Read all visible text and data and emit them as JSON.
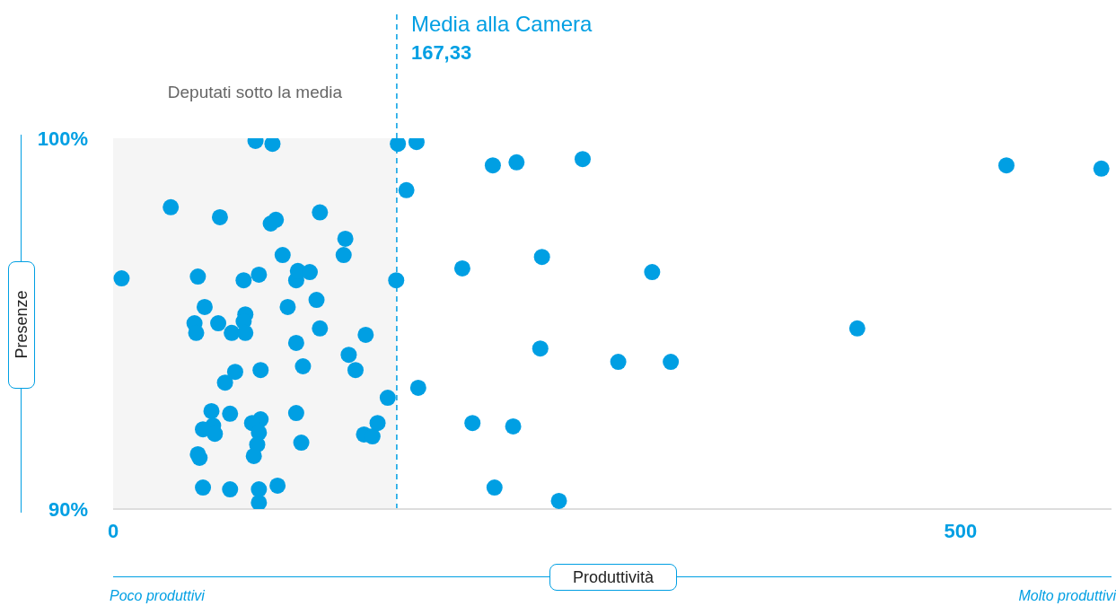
{
  "chart_data": {
    "type": "scatter",
    "xlabel": "Produttività",
    "ylabel": "Presenze",
    "x": [
      84,
      94,
      168,
      179,
      224,
      238,
      277,
      527,
      583,
      173,
      34,
      63,
      93,
      96,
      122,
      137,
      136,
      100,
      206,
      253,
      318,
      5,
      50,
      77,
      86,
      108,
      109,
      116,
      167,
      120,
      54,
      103,
      48,
      49,
      62,
      78,
      77,
      70,
      78,
      122,
      149,
      108,
      139,
      112,
      143,
      72,
      87,
      66,
      439,
      252,
      298,
      329,
      162,
      180,
      58,
      69,
      87,
      108,
      59,
      53,
      60,
      82,
      86,
      85,
      111,
      156,
      148,
      153,
      212,
      236,
      50,
      51,
      83,
      53,
      69,
      86,
      97,
      86,
      225,
      263
    ],
    "values": [
      99.93,
      99.85,
      99.85,
      99.9,
      99.27,
      99.35,
      99.44,
      99.27,
      99.18,
      98.6,
      98.14,
      97.87,
      97.7,
      97.8,
      98.0,
      97.29,
      96.85,
      96.85,
      96.49,
      96.8,
      96.39,
      96.22,
      96.27,
      96.17,
      96.32,
      96.17,
      96.42,
      96.39,
      96.17,
      95.64,
      95.45,
      95.45,
      95.01,
      94.75,
      95.01,
      95.25,
      95.06,
      94.75,
      94.75,
      94.87,
      94.7,
      94.48,
      94.16,
      93.85,
      93.75,
      93.7,
      93.75,
      93.41,
      94.87,
      94.33,
      93.97,
      93.97,
      93.0,
      93.27,
      92.64,
      92.57,
      92.42,
      92.59,
      92.25,
      92.15,
      92.03,
      92.32,
      92.06,
      91.74,
      91.79,
      92.32,
      92.01,
      91.96,
      92.32,
      92.23,
      91.48,
      91.38,
      91.43,
      90.58,
      90.53,
      90.53,
      90.63,
      90.17,
      90.58,
      90.22
    ],
    "color": "#009fe3",
    "marker": "circle",
    "xlim": [
      0,
      589
    ],
    "xticks": [
      0,
      500
    ],
    "ylim": [
      90,
      100
    ],
    "yticks": [
      {
        "value": 90,
        "label": "90%"
      },
      {
        "value": 100,
        "label": "100%"
      }
    ],
    "ref_lines": [
      {
        "axis": "x",
        "value": 167.33,
        "label": "Media alla Camera",
        "color": "#009fe3",
        "line_style": "dashed"
      }
    ],
    "bands": [
      {
        "axis": "x",
        "from": 0,
        "to": 167.33,
        "label": "Deputati sotto la media",
        "color": "#f5f5f5"
      }
    ],
    "annotations": [
      "167,33",
      "Poco produttivi",
      "Molto produttivi"
    ]
  }
}
